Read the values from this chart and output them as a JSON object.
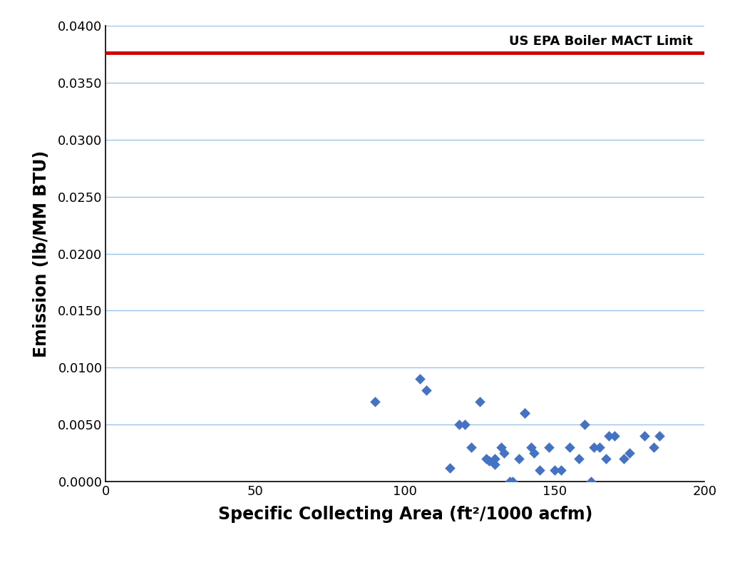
{
  "x_data": [
    90,
    105,
    107,
    115,
    118,
    120,
    122,
    125,
    127,
    128,
    130,
    130,
    132,
    133,
    135,
    136,
    138,
    140,
    140,
    142,
    143,
    145,
    148,
    150,
    152,
    155,
    158,
    160,
    162,
    163,
    165,
    167,
    168,
    170,
    173,
    175,
    180,
    183,
    185
  ],
  "y_data": [
    0.007,
    0.009,
    0.008,
    0.0012,
    0.005,
    0.005,
    0.003,
    0.007,
    0.002,
    0.0018,
    0.002,
    0.0015,
    0.003,
    0.0025,
    0.0,
    0.0,
    0.002,
    0.006,
    0.006,
    0.003,
    0.0025,
    0.001,
    0.003,
    0.001,
    0.001,
    0.003,
    0.002,
    0.005,
    0.0,
    0.003,
    0.003,
    0.002,
    0.004,
    0.004,
    0.002,
    0.0025,
    0.004,
    0.003,
    0.004
  ],
  "mact_limit": 0.0376,
  "mact_label": "US EPA Boiler MACT Limit",
  "xlabel": "Specific Collecting Area (ft²/1000 acfm)",
  "ylabel": "Emission (lb/MM BTU)",
  "xlim": [
    0,
    200
  ],
  "ylim": [
    0,
    0.04
  ],
  "xticks": [
    0,
    50,
    100,
    150,
    200
  ],
  "yticks": [
    0.0,
    0.005,
    0.01,
    0.015,
    0.02,
    0.025,
    0.03,
    0.035,
    0.04
  ],
  "marker_color": "#4472C4",
  "line_color": "#CC0000",
  "grid_color": "#9DC3E6",
  "background_color": "#FFFFFF",
  "xlabel_fontsize": 17,
  "ylabel_fontsize": 17,
  "tick_fontsize": 13,
  "mact_fontsize": 13,
  "line_width": 3.5,
  "marker_size": 55
}
